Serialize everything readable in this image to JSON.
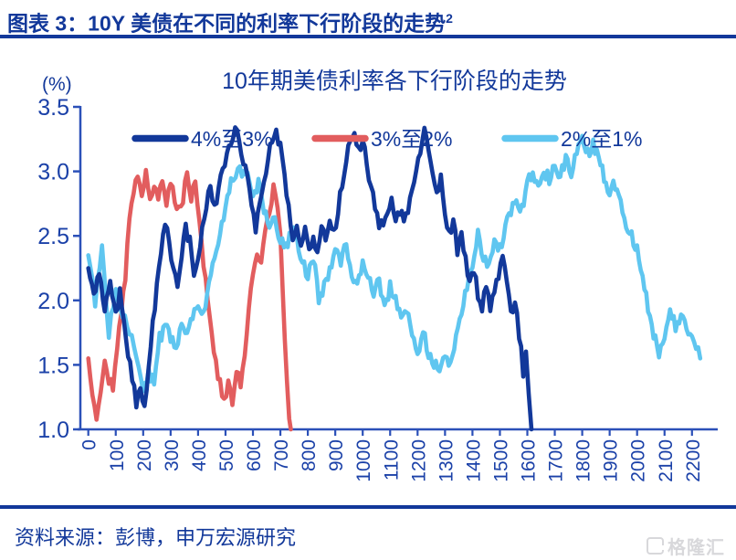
{
  "header": {
    "title": "图表 3：10Y 美债在不同的利率下行阶段的走势",
    "superscript": "2"
  },
  "footer": {
    "source_label": "资料来源：彭博，申万宏源研究",
    "watermark": "格隆汇"
  },
  "colors": {
    "navy": "#12389a",
    "axis": "#2b50b8",
    "tick_label": "#1b41a8",
    "red": "#e25d5e",
    "light_blue": "#5fc6f0",
    "watermark_gray": "#d8d8db"
  },
  "chart_data": {
    "type": "line",
    "title": "10年期美债利率各下行阶段的走势",
    "y_unit_label": "(%)",
    "xlabel": "",
    "ylabel": "(%)",
    "ylim": [
      1.0,
      3.5
    ],
    "xlim": [
      0,
      2290
    ],
    "y_ticks": [
      1.0,
      1.5,
      2.0,
      2.5,
      3.0,
      3.5
    ],
    "x_ticks": [
      0,
      100,
      200,
      300,
      400,
      500,
      600,
      700,
      800,
      900,
      1000,
      1100,
      1200,
      1300,
      1400,
      1500,
      1600,
      1700,
      1800,
      1900,
      2000,
      2100,
      2200
    ],
    "grid": false,
    "legend_position": "top-center-inside",
    "jitter": 0.05,
    "draw_order": [
      1,
      2,
      0
    ],
    "series": [
      {
        "name": "4%至3%",
        "key": "4-to-3",
        "color": "#12389a",
        "points": [
          [
            0,
            2.25
          ],
          [
            20,
            2.05
          ],
          [
            40,
            2.2
          ],
          [
            60,
            1.95
          ],
          [
            80,
            2.15
          ],
          [
            100,
            1.9
          ],
          [
            115,
            2.05
          ],
          [
            130,
            1.8
          ],
          [
            145,
            1.6
          ],
          [
            160,
            1.4
          ],
          [
            175,
            1.2
          ],
          [
            190,
            1.35
          ],
          [
            205,
            1.15
          ],
          [
            220,
            1.5
          ],
          [
            235,
            1.8
          ],
          [
            250,
            2.1
          ],
          [
            265,
            2.35
          ],
          [
            280,
            2.6
          ],
          [
            295,
            2.45
          ],
          [
            310,
            2.25
          ],
          [
            325,
            2.1
          ],
          [
            340,
            2.35
          ],
          [
            355,
            2.55
          ],
          [
            370,
            2.45
          ],
          [
            385,
            2.2
          ],
          [
            400,
            2.35
          ],
          [
            415,
            2.55
          ],
          [
            430,
            2.75
          ],
          [
            445,
            2.9
          ],
          [
            460,
            2.7
          ],
          [
            475,
            2.85
          ],
          [
            490,
            3.0
          ],
          [
            505,
            3.1
          ],
          [
            520,
            3.2
          ],
          [
            535,
            3.3
          ],
          [
            550,
            3.25
          ],
          [
            565,
            3.1
          ],
          [
            580,
            2.95
          ],
          [
            595,
            2.7
          ],
          [
            610,
            2.55
          ],
          [
            625,
            2.75
          ],
          [
            640,
            2.95
          ],
          [
            655,
            3.1
          ],
          [
            670,
            3.25
          ],
          [
            685,
            3.3
          ],
          [
            700,
            3.2
          ],
          [
            715,
            2.95
          ],
          [
            730,
            2.7
          ],
          [
            745,
            2.5
          ],
          [
            760,
            2.6
          ],
          [
            775,
            2.45
          ],
          [
            790,
            2.55
          ],
          [
            805,
            2.4
          ],
          [
            820,
            2.5
          ],
          [
            835,
            2.35
          ],
          [
            850,
            2.55
          ],
          [
            865,
            2.45
          ],
          [
            880,
            2.6
          ],
          [
            895,
            2.5
          ],
          [
            910,
            2.7
          ],
          [
            925,
            2.9
          ],
          [
            940,
            3.1
          ],
          [
            955,
            3.25
          ],
          [
            970,
            3.3
          ],
          [
            985,
            3.15
          ],
          [
            1000,
            3.25
          ],
          [
            1015,
            3.05
          ],
          [
            1030,
            2.9
          ],
          [
            1045,
            2.75
          ],
          [
            1060,
            2.6
          ],
          [
            1075,
            2.55
          ],
          [
            1090,
            2.65
          ],
          [
            1105,
            2.75
          ],
          [
            1120,
            2.6
          ],
          [
            1135,
            2.7
          ],
          [
            1150,
            2.6
          ],
          [
            1165,
            2.7
          ],
          [
            1180,
            2.85
          ],
          [
            1195,
            3.0
          ],
          [
            1210,
            3.15
          ],
          [
            1225,
            3.3
          ],
          [
            1240,
            3.15
          ],
          [
            1255,
            2.95
          ],
          [
            1270,
            2.85
          ],
          [
            1285,
            2.95
          ],
          [
            1300,
            2.7
          ],
          [
            1315,
            2.5
          ],
          [
            1330,
            2.6
          ],
          [
            1345,
            2.4
          ],
          [
            1360,
            2.5
          ],
          [
            1375,
            2.3
          ],
          [
            1390,
            2.15
          ],
          [
            1405,
            2.25
          ],
          [
            1420,
            2.05
          ],
          [
            1435,
            1.95
          ],
          [
            1450,
            2.15
          ],
          [
            1465,
            1.95
          ],
          [
            1480,
            2.1
          ],
          [
            1495,
            2.2
          ],
          [
            1510,
            2.35
          ],
          [
            1525,
            2.1
          ],
          [
            1540,
            1.9
          ],
          [
            1555,
            2.0
          ],
          [
            1570,
            1.75
          ],
          [
            1585,
            1.45
          ],
          [
            1595,
            1.65
          ],
          [
            1605,
            1.3
          ],
          [
            1615,
            1.0
          ]
        ]
      },
      {
        "name": "3%至2%",
        "key": "3-to-2",
        "color": "#e25d5e",
        "points": [
          [
            0,
            1.55
          ],
          [
            15,
            1.3
          ],
          [
            30,
            1.1
          ],
          [
            45,
            1.3
          ],
          [
            60,
            1.55
          ],
          [
            75,
            1.4
          ],
          [
            90,
            1.35
          ],
          [
            105,
            1.6
          ],
          [
            120,
            1.9
          ],
          [
            135,
            2.2
          ],
          [
            150,
            2.6
          ],
          [
            165,
            2.85
          ],
          [
            180,
            3.0
          ],
          [
            195,
            2.85
          ],
          [
            210,
            3.0
          ],
          [
            225,
            2.8
          ],
          [
            240,
            2.9
          ],
          [
            255,
            2.8
          ],
          [
            270,
            2.9
          ],
          [
            285,
            2.75
          ],
          [
            300,
            2.9
          ],
          [
            315,
            2.8
          ],
          [
            330,
            2.7
          ],
          [
            345,
            2.8
          ],
          [
            360,
            3.0
          ],
          [
            375,
            2.8
          ],
          [
            390,
            2.95
          ],
          [
            405,
            2.6
          ],
          [
            420,
            2.3
          ],
          [
            435,
            2.0
          ],
          [
            450,
            1.75
          ],
          [
            465,
            1.5
          ],
          [
            480,
            1.35
          ],
          [
            495,
            1.2
          ],
          [
            510,
            1.35
          ],
          [
            525,
            1.2
          ],
          [
            540,
            1.45
          ],
          [
            555,
            1.35
          ],
          [
            570,
            1.6
          ],
          [
            585,
            1.9
          ],
          [
            600,
            2.2
          ],
          [
            615,
            2.4
          ],
          [
            630,
            2.3
          ],
          [
            645,
            2.55
          ],
          [
            660,
            2.7
          ],
          [
            675,
            2.85
          ],
          [
            690,
            2.75
          ],
          [
            700,
            2.5
          ],
          [
            708,
            2.1
          ],
          [
            716,
            1.7
          ],
          [
            724,
            1.35
          ],
          [
            732,
            1.05
          ],
          [
            738,
            1.0
          ]
        ]
      },
      {
        "name": "2%至1%",
        "key": "2-to-1",
        "color": "#5fc6f0",
        "points": [
          [
            0,
            2.35
          ],
          [
            25,
            2.0
          ],
          [
            50,
            2.4
          ],
          [
            75,
            1.75
          ],
          [
            100,
            2.1
          ],
          [
            125,
            1.9
          ],
          [
            150,
            1.75
          ],
          [
            175,
            1.55
          ],
          [
            200,
            1.3
          ],
          [
            220,
            1.45
          ],
          [
            240,
            1.35
          ],
          [
            260,
            1.7
          ],
          [
            280,
            1.8
          ],
          [
            300,
            1.7
          ],
          [
            320,
            1.6
          ],
          [
            340,
            1.85
          ],
          [
            360,
            1.75
          ],
          [
            380,
            1.9
          ],
          [
            400,
            2.0
          ],
          [
            420,
            1.9
          ],
          [
            440,
            2.15
          ],
          [
            460,
            2.3
          ],
          [
            480,
            2.5
          ],
          [
            500,
            2.7
          ],
          [
            520,
            2.9
          ],
          [
            545,
            3.05
          ],
          [
            560,
            2.95
          ],
          [
            580,
            3.0
          ],
          [
            600,
            2.85
          ],
          [
            620,
            2.9
          ],
          [
            640,
            2.7
          ],
          [
            660,
            2.55
          ],
          [
            680,
            2.65
          ],
          [
            700,
            2.45
          ],
          [
            720,
            2.4
          ],
          [
            740,
            2.55
          ],
          [
            760,
            2.45
          ],
          [
            780,
            2.3
          ],
          [
            800,
            2.2
          ],
          [
            820,
            2.35
          ],
          [
            840,
            2.0
          ],
          [
            860,
            2.1
          ],
          [
            880,
            2.25
          ],
          [
            900,
            2.4
          ],
          [
            920,
            2.3
          ],
          [
            940,
            2.45
          ],
          [
            960,
            2.2
          ],
          [
            980,
            2.1
          ],
          [
            1000,
            2.3
          ],
          [
            1020,
            2.2
          ],
          [
            1040,
            2.05
          ],
          [
            1060,
            2.15
          ],
          [
            1080,
            1.95
          ],
          [
            1100,
            2.1
          ],
          [
            1120,
            2.0
          ],
          [
            1140,
            1.85
          ],
          [
            1160,
            1.95
          ],
          [
            1180,
            1.7
          ],
          [
            1200,
            1.6
          ],
          [
            1220,
            1.75
          ],
          [
            1240,
            1.6
          ],
          [
            1260,
            1.5
          ],
          [
            1280,
            1.45
          ],
          [
            1300,
            1.55
          ],
          [
            1320,
            1.5
          ],
          [
            1340,
            1.75
          ],
          [
            1360,
            1.9
          ],
          [
            1380,
            2.1
          ],
          [
            1400,
            2.3
          ],
          [
            1420,
            2.5
          ],
          [
            1440,
            2.35
          ],
          [
            1460,
            2.25
          ],
          [
            1480,
            2.45
          ],
          [
            1500,
            2.4
          ],
          [
            1520,
            2.55
          ],
          [
            1540,
            2.7
          ],
          [
            1560,
            2.8
          ],
          [
            1580,
            2.7
          ],
          [
            1600,
            2.9
          ],
          [
            1620,
            3.0
          ],
          [
            1640,
            2.9
          ],
          [
            1660,
            3.0
          ],
          [
            1680,
            2.95
          ],
          [
            1700,
            3.05
          ],
          [
            1720,
            2.95
          ],
          [
            1740,
            3.1
          ],
          [
            1760,
            3.0
          ],
          [
            1780,
            3.15
          ],
          [
            1800,
            3.25
          ],
          [
            1820,
            3.15
          ],
          [
            1840,
            3.2
          ],
          [
            1860,
            3.1
          ],
          [
            1880,
            2.95
          ],
          [
            1900,
            2.85
          ],
          [
            1920,
            2.9
          ],
          [
            1940,
            2.75
          ],
          [
            1960,
            2.6
          ],
          [
            1980,
            2.5
          ],
          [
            2000,
            2.4
          ],
          [
            2020,
            2.2
          ],
          [
            2040,
            1.95
          ],
          [
            2060,
            1.75
          ],
          [
            2080,
            1.55
          ],
          [
            2100,
            1.75
          ],
          [
            2120,
            1.9
          ],
          [
            2140,
            1.8
          ],
          [
            2160,
            1.9
          ],
          [
            2180,
            1.75
          ],
          [
            2200,
            1.7
          ],
          [
            2230,
            1.55
          ]
        ]
      }
    ]
  }
}
